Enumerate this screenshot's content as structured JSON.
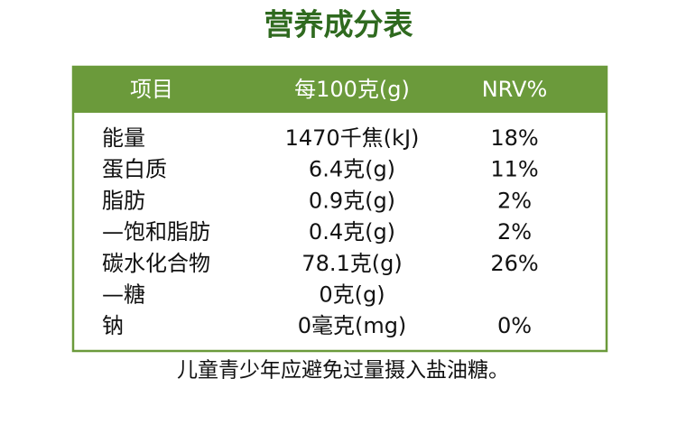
{
  "title": "营养成分表",
  "table": {
    "header": [
      "项目",
      "每100克(g)",
      "NRV%"
    ],
    "rows": [
      [
        "能量",
        "1470千焦(kJ)",
        "18%"
      ],
      [
        "蛋白质",
        "6.4克(g)",
        "11%"
      ],
      [
        "脂肪",
        "0.9克(g)",
        "2%"
      ],
      [
        "—饱和脂肪",
        "0.4克(g)",
        "2%"
      ],
      [
        "碳水化合物",
        "78.1克(g)",
        "26%"
      ],
      [
        "—糖",
        "0克(g)"
      ],
      [
        "钠",
        "0毫克(mg)",
        "0%"
      ]
    ]
  },
  "note": "儿童青少年应避免过量摄入盐油糖。"
}
